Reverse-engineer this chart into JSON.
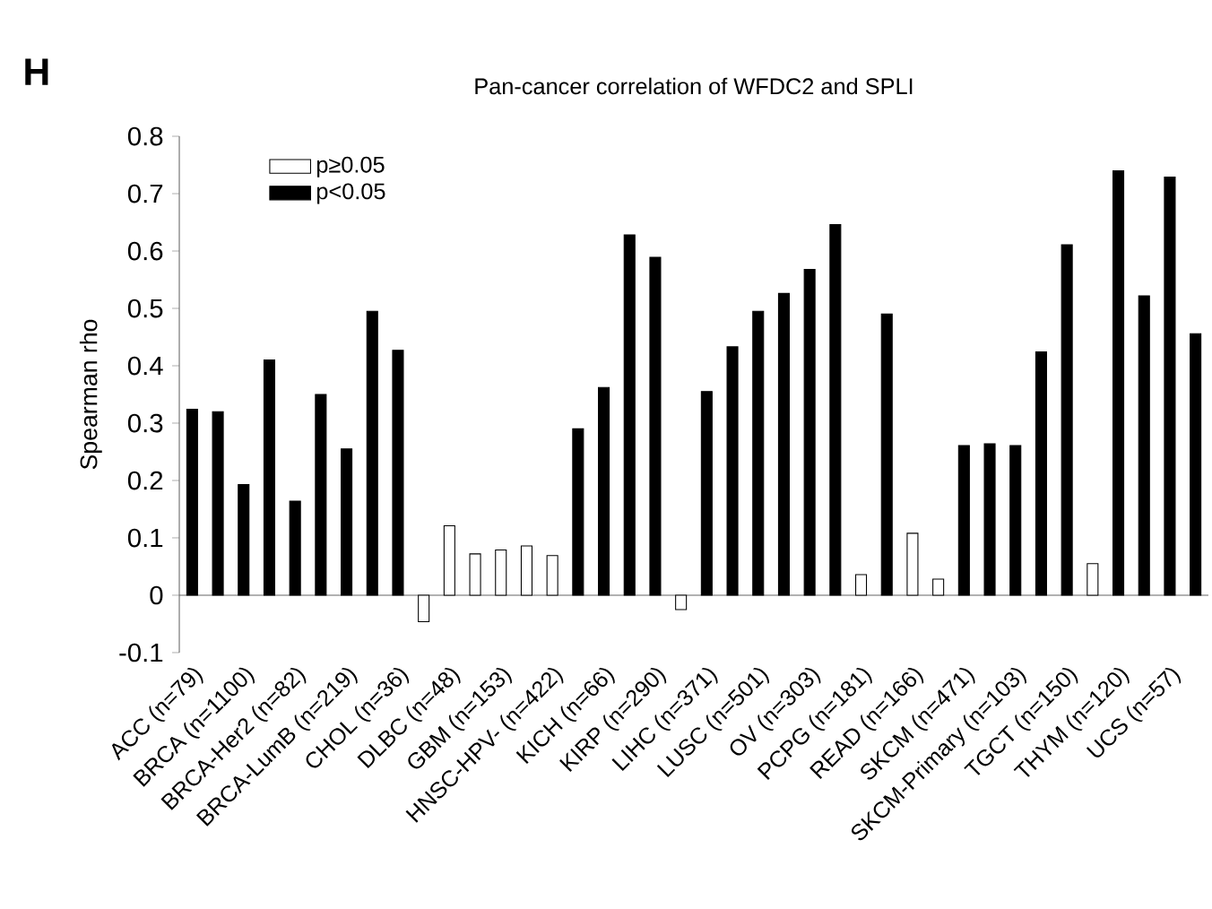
{
  "chart_data": {
    "type": "bar",
    "title": "Pan-cancer correlation of WFDC2 and SPLI",
    "ylabel": "Spearman rho",
    "annotations": [
      "H"
    ],
    "categories": [
      "ACC (n=79)",
      null,
      "BRCA (n=1100)",
      null,
      "BRCA-Her2 (n=82)",
      null,
      "BRCA-LumB (n=219)",
      null,
      "CHOL (n=36)",
      null,
      "DLBC (n=48)",
      null,
      "GBM (n=153)",
      null,
      "HNSC-HPV- (n=422)",
      null,
      "KICH (n=66)",
      null,
      "KIRP (n=290)",
      null,
      "LIHC (n=371)",
      null,
      "LUSC (n=501)",
      null,
      "OV (n=303)",
      null,
      "PCPG (n=181)",
      null,
      "READ (n=166)",
      null,
      "SKCM (n=471)",
      null,
      "SKCM-Primary (n=103)",
      null,
      "TGCT (n=150)",
      null,
      "THYM (n=120)",
      null,
      "UCS (n=57)",
      null
    ],
    "series": [
      {
        "name": "p≥0.05",
        "color": "#ffffff",
        "values": [
          null,
          null,
          null,
          null,
          null,
          null,
          null,
          null,
          null,
          -0.046,
          0.121,
          0.072,
          0.079,
          0.086,
          0.069,
          null,
          null,
          null,
          null,
          -0.025,
          null,
          null,
          null,
          null,
          null,
          null,
          0.036,
          null,
          0.108,
          0.028,
          null,
          null,
          null,
          null,
          null,
          0.055,
          null,
          null,
          null,
          null
        ]
      },
      {
        "name": "p<0.05",
        "color": "#000000",
        "values": [
          0.324,
          0.32,
          0.193,
          0.41,
          0.164,
          0.35,
          0.255,
          0.495,
          0.427,
          null,
          null,
          null,
          null,
          null,
          null,
          0.29,
          0.362,
          0.628,
          0.589,
          null,
          0.355,
          0.433,
          0.495,
          0.526,
          0.568,
          0.646,
          null,
          0.49,
          null,
          null,
          0.261,
          0.264,
          0.261,
          0.424,
          0.611,
          null,
          0.74,
          0.522,
          0.729,
          0.456
        ]
      }
    ],
    "ylim": [
      -0.1,
      0.8
    ],
    "yticks": [
      -0.1,
      0,
      0.1,
      0.2,
      0.3,
      0.4,
      0.5,
      0.6,
      0.7,
      0.8
    ],
    "legend": "top left"
  }
}
